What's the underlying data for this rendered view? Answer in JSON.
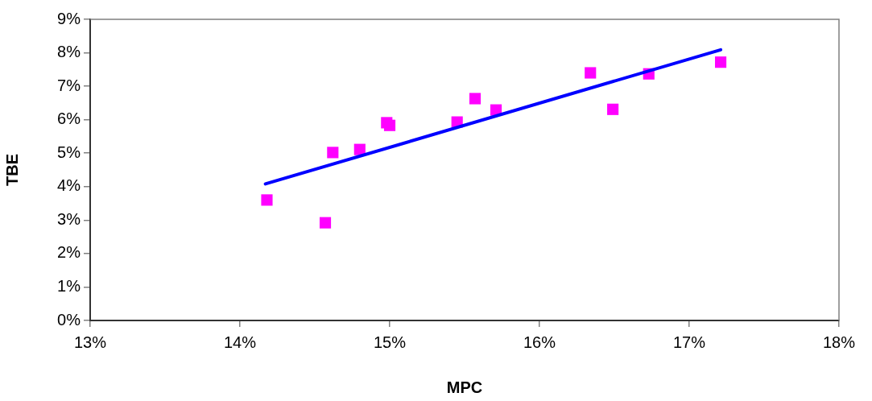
{
  "chart_data": {
    "type": "scatter",
    "xlabel": "MPC",
    "ylabel": "TBE",
    "xlim": [
      13,
      18
    ],
    "xticks": [
      {
        "value": 13,
        "label": "13%"
      },
      {
        "value": 14,
        "label": "14%"
      },
      {
        "value": 15,
        "label": "15%"
      },
      {
        "value": 16,
        "label": "16%"
      },
      {
        "value": 17,
        "label": "17%"
      },
      {
        "value": 18,
        "label": "18%"
      }
    ],
    "ylim": [
      0,
      9
    ],
    "yticks": [
      {
        "value": 0,
        "label": "0%"
      },
      {
        "value": 1,
        "label": "1%"
      },
      {
        "value": 2,
        "label": "2%"
      },
      {
        "value": 3,
        "label": "3%"
      },
      {
        "value": 4,
        "label": "4%"
      },
      {
        "value": 5,
        "label": "5%"
      },
      {
        "value": 6,
        "label": "6%"
      },
      {
        "value": 7,
        "label": "7%"
      },
      {
        "value": 8,
        "label": "8%"
      },
      {
        "value": 9,
        "label": "9%"
      }
    ],
    "grid": false,
    "legend": false,
    "marker": "square",
    "series": [
      {
        "color": "#ff00ff",
        "x": [
          14.18,
          14.57,
          14.62,
          14.8,
          14.98,
          15.0,
          15.45,
          15.57,
          15.71,
          16.34,
          16.49,
          16.73,
          17.21
        ],
        "values": [
          3.6,
          2.92,
          5.02,
          5.11,
          5.91,
          5.83,
          5.93,
          6.63,
          6.29,
          7.4,
          6.31,
          7.37,
          7.72
        ]
      },
      {
        "type": "line",
        "color": "#0000ff",
        "marker": "none",
        "x": [
          14.17,
          17.21
        ],
        "values": [
          4.08,
          8.09
        ]
      }
    ]
  }
}
